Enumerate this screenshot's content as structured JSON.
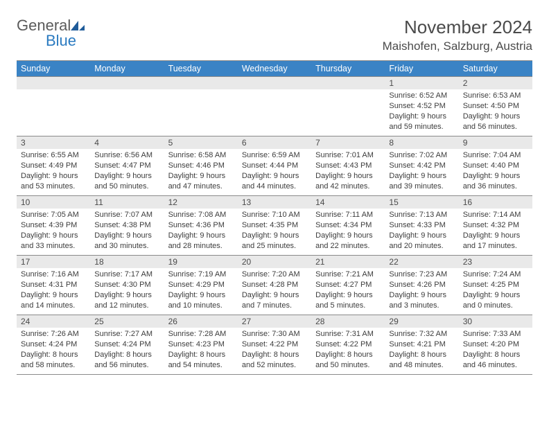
{
  "logo": {
    "general": "General",
    "blue": "Blue"
  },
  "title": "November 2024",
  "location": "Maishofen, Salzburg, Austria",
  "colors": {
    "header_bg": "#3a83c5",
    "header_text": "#ffffff",
    "daybar_bg": "#e9e9e9",
    "border": "#8a8a8a",
    "body_text": "#3c3c3c",
    "title_text": "#4a4a4a",
    "logo_general": "#5a5a5a",
    "logo_blue": "#2a7ac0",
    "logo_sail": "#1f5b99"
  },
  "typography": {
    "month_title_fontsize": 26,
    "location_fontsize": 17,
    "weekday_fontsize": 12.5,
    "daynum_fontsize": 12,
    "dayinfo_fontsize": 11
  },
  "weekdays": [
    "Sunday",
    "Monday",
    "Tuesday",
    "Wednesday",
    "Thursday",
    "Friday",
    "Saturday"
  ],
  "weeks": [
    [
      null,
      null,
      null,
      null,
      null,
      {
        "n": "1",
        "sunrise": "6:52 AM",
        "sunset": "4:52 PM",
        "dl_h": "9",
        "dl_m": "59"
      },
      {
        "n": "2",
        "sunrise": "6:53 AM",
        "sunset": "4:50 PM",
        "dl_h": "9",
        "dl_m": "56"
      }
    ],
    [
      {
        "n": "3",
        "sunrise": "6:55 AM",
        "sunset": "4:49 PM",
        "dl_h": "9",
        "dl_m": "53"
      },
      {
        "n": "4",
        "sunrise": "6:56 AM",
        "sunset": "4:47 PM",
        "dl_h": "9",
        "dl_m": "50"
      },
      {
        "n": "5",
        "sunrise": "6:58 AM",
        "sunset": "4:46 PM",
        "dl_h": "9",
        "dl_m": "47"
      },
      {
        "n": "6",
        "sunrise": "6:59 AM",
        "sunset": "4:44 PM",
        "dl_h": "9",
        "dl_m": "44"
      },
      {
        "n": "7",
        "sunrise": "7:01 AM",
        "sunset": "4:43 PM",
        "dl_h": "9",
        "dl_m": "42"
      },
      {
        "n": "8",
        "sunrise": "7:02 AM",
        "sunset": "4:42 PM",
        "dl_h": "9",
        "dl_m": "39"
      },
      {
        "n": "9",
        "sunrise": "7:04 AM",
        "sunset": "4:40 PM",
        "dl_h": "9",
        "dl_m": "36"
      }
    ],
    [
      {
        "n": "10",
        "sunrise": "7:05 AM",
        "sunset": "4:39 PM",
        "dl_h": "9",
        "dl_m": "33"
      },
      {
        "n": "11",
        "sunrise": "7:07 AM",
        "sunset": "4:38 PM",
        "dl_h": "9",
        "dl_m": "30"
      },
      {
        "n": "12",
        "sunrise": "7:08 AM",
        "sunset": "4:36 PM",
        "dl_h": "9",
        "dl_m": "28"
      },
      {
        "n": "13",
        "sunrise": "7:10 AM",
        "sunset": "4:35 PM",
        "dl_h": "9",
        "dl_m": "25"
      },
      {
        "n": "14",
        "sunrise": "7:11 AM",
        "sunset": "4:34 PM",
        "dl_h": "9",
        "dl_m": "22"
      },
      {
        "n": "15",
        "sunrise": "7:13 AM",
        "sunset": "4:33 PM",
        "dl_h": "9",
        "dl_m": "20"
      },
      {
        "n": "16",
        "sunrise": "7:14 AM",
        "sunset": "4:32 PM",
        "dl_h": "9",
        "dl_m": "17"
      }
    ],
    [
      {
        "n": "17",
        "sunrise": "7:16 AM",
        "sunset": "4:31 PM",
        "dl_h": "9",
        "dl_m": "14"
      },
      {
        "n": "18",
        "sunrise": "7:17 AM",
        "sunset": "4:30 PM",
        "dl_h": "9",
        "dl_m": "12"
      },
      {
        "n": "19",
        "sunrise": "7:19 AM",
        "sunset": "4:29 PM",
        "dl_h": "9",
        "dl_m": "10"
      },
      {
        "n": "20",
        "sunrise": "7:20 AM",
        "sunset": "4:28 PM",
        "dl_h": "9",
        "dl_m": "7"
      },
      {
        "n": "21",
        "sunrise": "7:21 AM",
        "sunset": "4:27 PM",
        "dl_h": "9",
        "dl_m": "5"
      },
      {
        "n": "22",
        "sunrise": "7:23 AM",
        "sunset": "4:26 PM",
        "dl_h": "9",
        "dl_m": "3"
      },
      {
        "n": "23",
        "sunrise": "7:24 AM",
        "sunset": "4:25 PM",
        "dl_h": "9",
        "dl_m": "0"
      }
    ],
    [
      {
        "n": "24",
        "sunrise": "7:26 AM",
        "sunset": "4:24 PM",
        "dl_h": "8",
        "dl_m": "58"
      },
      {
        "n": "25",
        "sunrise": "7:27 AM",
        "sunset": "4:24 PM",
        "dl_h": "8",
        "dl_m": "56"
      },
      {
        "n": "26",
        "sunrise": "7:28 AM",
        "sunset": "4:23 PM",
        "dl_h": "8",
        "dl_m": "54"
      },
      {
        "n": "27",
        "sunrise": "7:30 AM",
        "sunset": "4:22 PM",
        "dl_h": "8",
        "dl_m": "52"
      },
      {
        "n": "28",
        "sunrise": "7:31 AM",
        "sunset": "4:22 PM",
        "dl_h": "8",
        "dl_m": "50"
      },
      {
        "n": "29",
        "sunrise": "7:32 AM",
        "sunset": "4:21 PM",
        "dl_h": "8",
        "dl_m": "48"
      },
      {
        "n": "30",
        "sunrise": "7:33 AM",
        "sunset": "4:20 PM",
        "dl_h": "8",
        "dl_m": "46"
      }
    ]
  ],
  "labels": {
    "sunrise": "Sunrise:",
    "sunset": "Sunset:",
    "daylight_pre": "Daylight:",
    "hours": "hours",
    "and": "and",
    "minutes": "minutes."
  }
}
